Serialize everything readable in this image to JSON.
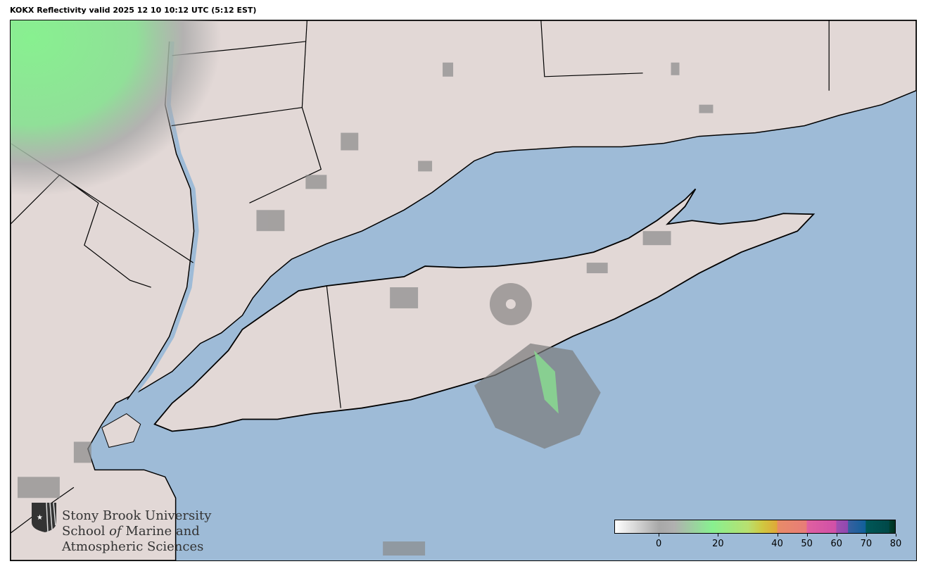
{
  "title": "KOKX Reflectivity valid 2025 12 10 10:12 UTC (5:12 EST)",
  "map": {
    "water_color": "#9ebbd7",
    "land_color": "#e2d8d6",
    "radar_site": "KOKX"
  },
  "logo": {
    "line1": "Stony Brook University",
    "line2a": "School ",
    "line2b": "of",
    "line2c": " Marine and",
    "line3": "Atmospheric Sciences"
  },
  "colorbar": {
    "range_dbz": [
      -15,
      80
    ],
    "ticks": [
      {
        "value": 0,
        "label": "0"
      },
      {
        "value": 20,
        "label": "20"
      },
      {
        "value": 40,
        "label": "40"
      },
      {
        "value": 50,
        "label": "50"
      },
      {
        "value": 60,
        "label": "60"
      },
      {
        "value": 70,
        "label": "70"
      },
      {
        "value": 80,
        "label": "80"
      }
    ],
    "stops": [
      {
        "value": -15,
        "color": "#ffffff"
      },
      {
        "value": 0,
        "color": "#a8a8a8"
      },
      {
        "value": 5,
        "color": "#b0b0b0"
      },
      {
        "value": 18,
        "color": "#88f090"
      },
      {
        "value": 30,
        "color": "#b8e070"
      },
      {
        "value": 35,
        "color": "#d0c840"
      },
      {
        "value": 40,
        "color": "#e0a838"
      },
      {
        "value": 40.1,
        "color": "#e88c68"
      },
      {
        "value": 50,
        "color": "#e87c78"
      },
      {
        "value": 50.1,
        "color": "#e060a0"
      },
      {
        "value": 60,
        "color": "#d050a8"
      },
      {
        "value": 60.1,
        "color": "#a050b0"
      },
      {
        "value": 64,
        "color": "#9048b0"
      },
      {
        "value": 64.1,
        "color": "#3860a0"
      },
      {
        "value": 70,
        "color": "#10609a"
      },
      {
        "value": 70.1,
        "color": "#005858"
      },
      {
        "value": 78,
        "color": "#004848"
      },
      {
        "value": 78.1,
        "color": "#004030"
      },
      {
        "value": 80,
        "color": "#003020"
      }
    ]
  }
}
